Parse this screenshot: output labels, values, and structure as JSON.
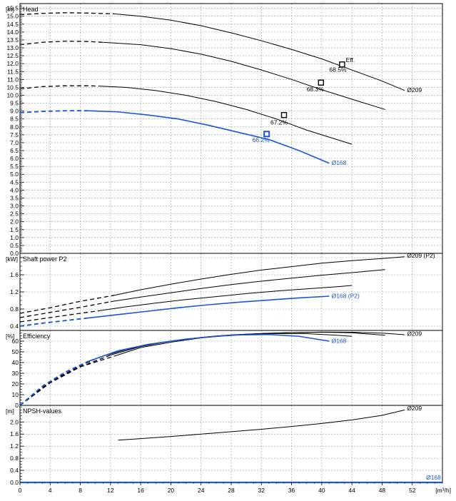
{
  "chart_data": {
    "type": "line",
    "x_axis": {
      "range": [
        0,
        56
      ],
      "ticks": [
        0,
        4,
        8,
        12,
        16,
        20,
        24,
        28,
        32,
        36,
        40,
        44,
        48,
        52
      ],
      "tick_labels": [
        "0",
        "4",
        "8",
        "12",
        "16",
        "20",
        "24",
        "28",
        "32",
        "36",
        "40",
        "44",
        "48",
        "52"
      ],
      "unit": "[m³/h]"
    },
    "colors": {
      "default": "#000000",
      "selected": "#1a56d8"
    },
    "panels": [
      {
        "id": "head",
        "title": "Head",
        "unit": "[m]",
        "y_range": [
          0,
          15.8
        ],
        "y_ticks": [
          0.0,
          0.5,
          1.0,
          1.5,
          2.0,
          2.5,
          3.0,
          3.5,
          4.0,
          4.5,
          5.0,
          5.5,
          6.0,
          6.5,
          7.0,
          7.5,
          8.0,
          8.5,
          9.0,
          9.5,
          10.0,
          10.5,
          11.0,
          11.5,
          12.0,
          12.5,
          13.0,
          13.5,
          14.0,
          14.5,
          15.0,
          15.5
        ],
        "y_tick_labels": [
          "0.0",
          "0.5",
          "1.0",
          "1.5",
          "2.0",
          "2.5",
          "3.0",
          "3.5",
          "4.0",
          "4.5",
          "5.0",
          "5.5",
          "6.0",
          "6.5",
          "7.0",
          "7.5",
          "8.0",
          "8.5",
          "9.0",
          "9.5",
          "10.0",
          "10.5",
          "11.0",
          "11.5",
          "12.0",
          "12.5",
          "13.0",
          "13.5",
          "14.0",
          "14.5",
          "15.0",
          "15.5"
        ],
        "series": [
          {
            "dashed_x": [
              0,
              3,
              6,
              9,
              12.5
            ],
            "dashed_y": [
              15.1,
              15.18,
              15.22,
              15.2,
              15.15
            ],
            "x": [
              12.5,
              16,
              20,
              24,
              28,
              32,
              36,
              40,
              44,
              48,
              51
            ],
            "y": [
              15.15,
              15.0,
              14.75,
              14.4,
              13.95,
              13.45,
              12.9,
              12.3,
              11.6,
              10.9,
              10.3
            ],
            "selected": false
          },
          {
            "dashed_x": [
              0,
              3,
              6,
              9,
              11
            ],
            "dashed_y": [
              13.2,
              13.35,
              13.42,
              13.4,
              13.35
            ],
            "x": [
              11,
              16,
              20,
              24,
              28,
              32,
              36,
              40,
              44,
              48.4
            ],
            "y": [
              13.35,
              13.2,
              12.95,
              12.6,
              12.15,
              11.6,
              11.0,
              10.35,
              9.75,
              9.1
            ],
            "selected": false
          },
          {
            "dashed_x": [
              0,
              3,
              6,
              9,
              10.5
            ],
            "dashed_y": [
              10.4,
              10.55,
              10.6,
              10.6,
              10.58
            ],
            "x": [
              10.5,
              14,
              18,
              22,
              26,
              30,
              34,
              38,
              42,
              44
            ],
            "y": [
              10.58,
              10.5,
              10.3,
              10.0,
              9.6,
              9.1,
              8.5,
              7.8,
              7.2,
              6.9
            ],
            "selected": false
          },
          {
            "dashed_x": [
              0,
              3,
              6,
              9
            ],
            "dashed_y": [
              8.9,
              8.98,
              9.02,
              9.02
            ],
            "x": [
              9,
              13,
              17,
              21,
              25,
              29,
              33,
              37,
              41
            ],
            "y": [
              9.02,
              8.95,
              8.75,
              8.5,
              8.1,
              7.65,
              7.2,
              6.5,
              5.7
            ],
            "selected": true
          }
        ],
        "markers": [
          {
            "x": 42.7,
            "y": 11.95,
            "selected": false
          },
          {
            "x": 39.9,
            "y": 10.8,
            "selected": false
          },
          {
            "x": 35.0,
            "y": 8.75,
            "selected": false
          },
          {
            "x": 32.7,
            "y": 7.55,
            "selected": true
          }
        ],
        "annotations": [
          {
            "text": "Eff.",
            "x": 43.2,
            "y": 12.1,
            "selected": false,
            "anchor": "start"
          },
          {
            "text": "68.5%",
            "x": 41.0,
            "y": 11.5,
            "selected": false,
            "anchor": "start"
          },
          {
            "text": "68.3%",
            "x": 38.0,
            "y": 10.25,
            "selected": false,
            "anchor": "start"
          },
          {
            "text": "67.2%",
            "x": 33.2,
            "y": 8.15,
            "selected": false,
            "anchor": "start"
          },
          {
            "text": "66.2%",
            "x": 30.8,
            "y": 7.05,
            "selected": true,
            "anchor": "start"
          },
          {
            "text": "Ø209",
            "x": 51.3,
            "y": 10.2,
            "selected": false,
            "anchor": "start"
          },
          {
            "text": "Ø168",
            "x": 41.3,
            "y": 5.6,
            "selected": true,
            "anchor": "start"
          }
        ]
      },
      {
        "id": "power",
        "title": "Shaft power P2",
        "unit": "[kW]",
        "y_range": [
          0.3,
          2.1
        ],
        "y_ticks": [
          0.4,
          0.8,
          1.2,
          1.6,
          2.0
        ],
        "y_tick_labels": [
          "0.4",
          "0.8",
          "1.2",
          "1.6",
          ""
        ],
        "series": [
          {
            "dashed_x": [
              0,
              4,
              8,
              12.5
            ],
            "dashed_y": [
              0.7,
              0.83,
              0.98,
              1.12
            ],
            "x": [
              12.5,
              16,
              20,
              24,
              28,
              32,
              36,
              40,
              44,
              48,
              51
            ],
            "y": [
              1.12,
              1.25,
              1.38,
              1.5,
              1.61,
              1.71,
              1.79,
              1.87,
              1.93,
              1.98,
              2.02
            ],
            "selected": false
          },
          {
            "dashed_x": [
              0,
              4,
              8,
              12
            ],
            "dashed_y": [
              0.6,
              0.72,
              0.84,
              0.97
            ],
            "x": [
              12,
              16,
              20,
              24,
              28,
              32,
              36,
              40,
              44,
              48.4
            ],
            "y": [
              0.97,
              1.08,
              1.18,
              1.28,
              1.37,
              1.45,
              1.52,
              1.59,
              1.65,
              1.72
            ],
            "selected": false
          },
          {
            "dashed_x": [
              0,
              4,
              8,
              10.5
            ],
            "dashed_y": [
              0.5,
              0.6,
              0.7,
              0.76
            ],
            "x": [
              10.5,
              14,
              18,
              22,
              26,
              30,
              34,
              38,
              42,
              44
            ],
            "y": [
              0.76,
              0.85,
              0.94,
              1.02,
              1.09,
              1.16,
              1.22,
              1.27,
              1.32,
              1.35
            ],
            "selected": false
          },
          {
            "dashed_x": [
              0,
              3,
              6,
              9
            ],
            "dashed_y": [
              0.4,
              0.47,
              0.53,
              0.59
            ],
            "x": [
              9,
              13,
              17,
              21,
              25,
              29,
              33,
              37,
              41
            ],
            "y": [
              0.59,
              0.67,
              0.75,
              0.83,
              0.9,
              0.96,
              1.01,
              1.06,
              1.1
            ],
            "selected": true
          }
        ],
        "markers": [],
        "annotations": [
          {
            "text": "Ø209 (P2)",
            "x": 51.3,
            "y": 2.0,
            "selected": false,
            "anchor": "start"
          },
          {
            "text": "Ø168 (P2)",
            "x": 41.3,
            "y": 1.06,
            "selected": true,
            "anchor": "start"
          }
        ]
      },
      {
        "id": "efficiency",
        "title": "Efficiency",
        "unit": "[%]",
        "y_range": [
          0,
          70
        ],
        "y_ticks": [
          0,
          10,
          20,
          30,
          40,
          50,
          60
        ],
        "y_tick_labels": [
          "0",
          "10",
          "20",
          "30",
          "40",
          "50",
          "60"
        ],
        "series": [
          {
            "dashed_x": [
              0,
              4,
              8,
              12.5
            ],
            "dashed_y": [
              0,
              21,
              36,
              46
            ],
            "x": [
              12.5,
              16,
              20,
              24,
              28,
              32,
              36,
              40,
              44,
              48,
              51
            ],
            "y": [
              46,
              54,
              59,
              63,
              65.5,
              67,
              68,
              68.5,
              68.3,
              67.5,
              66
            ],
            "selected": false
          },
          {
            "dashed_x": [
              0,
              4,
              8,
              12
            ],
            "dashed_y": [
              0,
              22,
              36,
              47
            ],
            "x": [
              12,
              16,
              20,
              24,
              28,
              32,
              36,
              40,
              44,
              48.4
            ],
            "y": [
              47,
              55,
              60,
              63.5,
              65.8,
              67.2,
              68.0,
              68.3,
              67.8,
              65.5
            ],
            "selected": false
          },
          {
            "dashed_x": [
              0,
              4,
              8,
              10.5
            ],
            "dashed_y": [
              0,
              22,
              37,
              45
            ],
            "x": [
              10.5,
              14,
              18,
              22,
              26,
              30,
              34,
              38,
              42,
              44
            ],
            "y": [
              45,
              52,
              58,
              62,
              64.8,
              66.5,
              67.2,
              67.0,
              65.5,
              64.5
            ],
            "selected": false
          },
          {
            "dashed_x": [
              0,
              3,
              6,
              9
            ],
            "dashed_y": [
              0,
              18,
              31,
              41
            ],
            "x": [
              9,
              13,
              17,
              21,
              25,
              29,
              33,
              37,
              41
            ],
            "y": [
              41,
              51,
              57,
              61,
              64,
              65.8,
              66.2,
              64.5,
              60
            ],
            "selected": true
          }
        ],
        "markers": [],
        "annotations": [
          {
            "text": "Ø209",
            "x": 51.3,
            "y": 65,
            "selected": false,
            "anchor": "start"
          },
          {
            "text": "Ø168",
            "x": 41.3,
            "y": 58.5,
            "selected": true,
            "anchor": "start"
          }
        ]
      },
      {
        "id": "npsh",
        "title": "NPSH-values",
        "unit": "[m]",
        "y_range": [
          0,
          2.55
        ],
        "y_ticks": [
          0.0,
          0.4,
          0.8,
          1.2,
          1.6,
          2.0
        ],
        "y_tick_labels": [
          "0.0",
          "0.4",
          "0.8",
          "1.2",
          "1.6",
          "2.0"
        ],
        "series": [
          {
            "dashed_x": [],
            "dashed_y": [],
            "x": [
              13,
              16,
              20,
              24,
              28,
              32,
              36,
              40,
              44,
              48,
              51
            ],
            "y": [
              1.4,
              1.45,
              1.52,
              1.6,
              1.68,
              1.76,
              1.85,
              1.95,
              2.07,
              2.22,
              2.4
            ],
            "selected": false
          },
          {
            "dashed_x": [],
            "dashed_y": [],
            "x": [
              0,
              56
            ],
            "y": [
              0.0,
              0.0
            ],
            "selected": true
          }
        ],
        "markers": [],
        "annotations": [
          {
            "text": "Ø209",
            "x": 51.3,
            "y": 2.38,
            "selected": false,
            "anchor": "start"
          },
          {
            "text": "Ø168",
            "x": 55.8,
            "y": 0.1,
            "selected": true,
            "anchor": "end"
          }
        ]
      }
    ]
  }
}
